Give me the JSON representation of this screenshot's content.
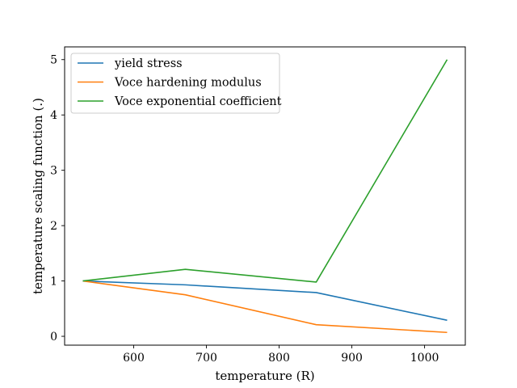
{
  "chart_data": {
    "type": "line",
    "title": "",
    "xlabel": "temperature (R)",
    "ylabel": "temperature scaling function (.)",
    "xlim": [
      505,
      1056
    ],
    "ylim": [
      -0.16,
      5.23
    ],
    "xticks": [
      600,
      700,
      800,
      900,
      1000
    ],
    "yticks": [
      0,
      1,
      2,
      3,
      4,
      5
    ],
    "grid": false,
    "legend": "upper-left",
    "x": [
      530,
      671,
      851,
      1031
    ],
    "series": [
      {
        "name": "yield stress",
        "color": "#1f77b4",
        "values": [
          1.0,
          0.93,
          0.79,
          0.29
        ]
      },
      {
        "name": "Voce hardening modulus",
        "color": "#ff7f0e",
        "values": [
          1.0,
          0.75,
          0.21,
          0.07
        ]
      },
      {
        "name": "Voce exponential coefficient",
        "color": "#2ca02c",
        "values": [
          1.0,
          1.21,
          0.98,
          5.0
        ]
      }
    ]
  }
}
